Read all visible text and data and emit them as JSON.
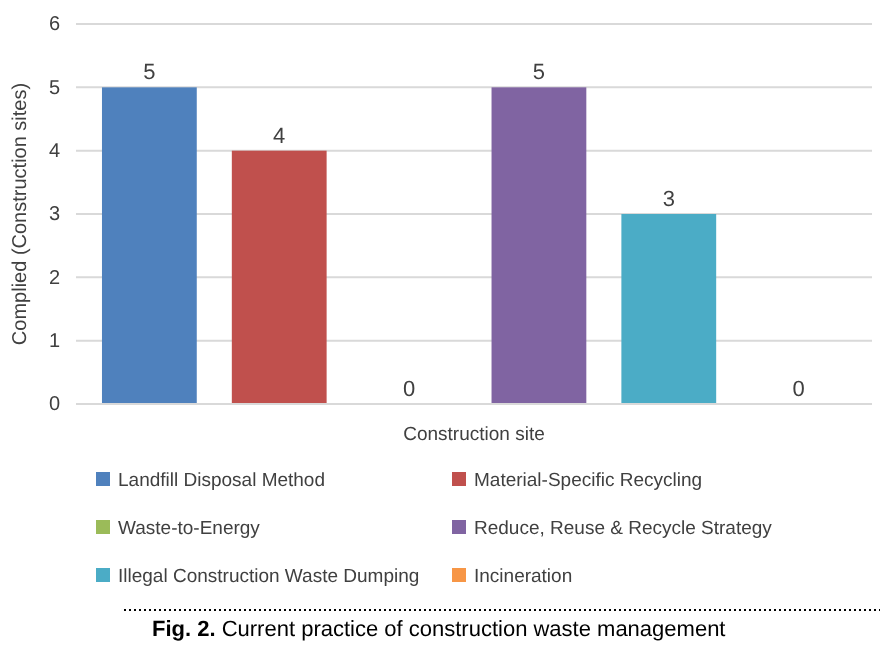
{
  "chart_data": {
    "type": "bar",
    "ylabel": "Complied (Construction sites)",
    "categories": [
      "Construction site"
    ],
    "series": [
      {
        "name": "Landfill Disposal Method",
        "color": "#4f81bd",
        "values": [
          5
        ]
      },
      {
        "name": "Material-Specific Recycling",
        "color": "#c0504d",
        "values": [
          4
        ]
      },
      {
        "name": "Waste-to-Energy",
        "color": "#9bbb59",
        "values": [
          0
        ]
      },
      {
        "name": "Reduce, Reuse & Recycle Strategy",
        "color": "#8064a2",
        "values": [
          5
        ]
      },
      {
        "name": "Illegal Construction Waste Dumping",
        "color": "#4bacc6",
        "values": [
          3
        ]
      },
      {
        "name": "Incineration",
        "color": "#f79646",
        "values": [
          0
        ]
      }
    ],
    "ylim": [
      0,
      6
    ],
    "yticks": [
      0,
      1,
      2,
      3,
      4,
      5,
      6
    ],
    "grid": "y",
    "legend": "bottom",
    "data_labels": true,
    "annotations": [
      "Fig. 2. Current practice of construction waste management"
    ]
  }
}
